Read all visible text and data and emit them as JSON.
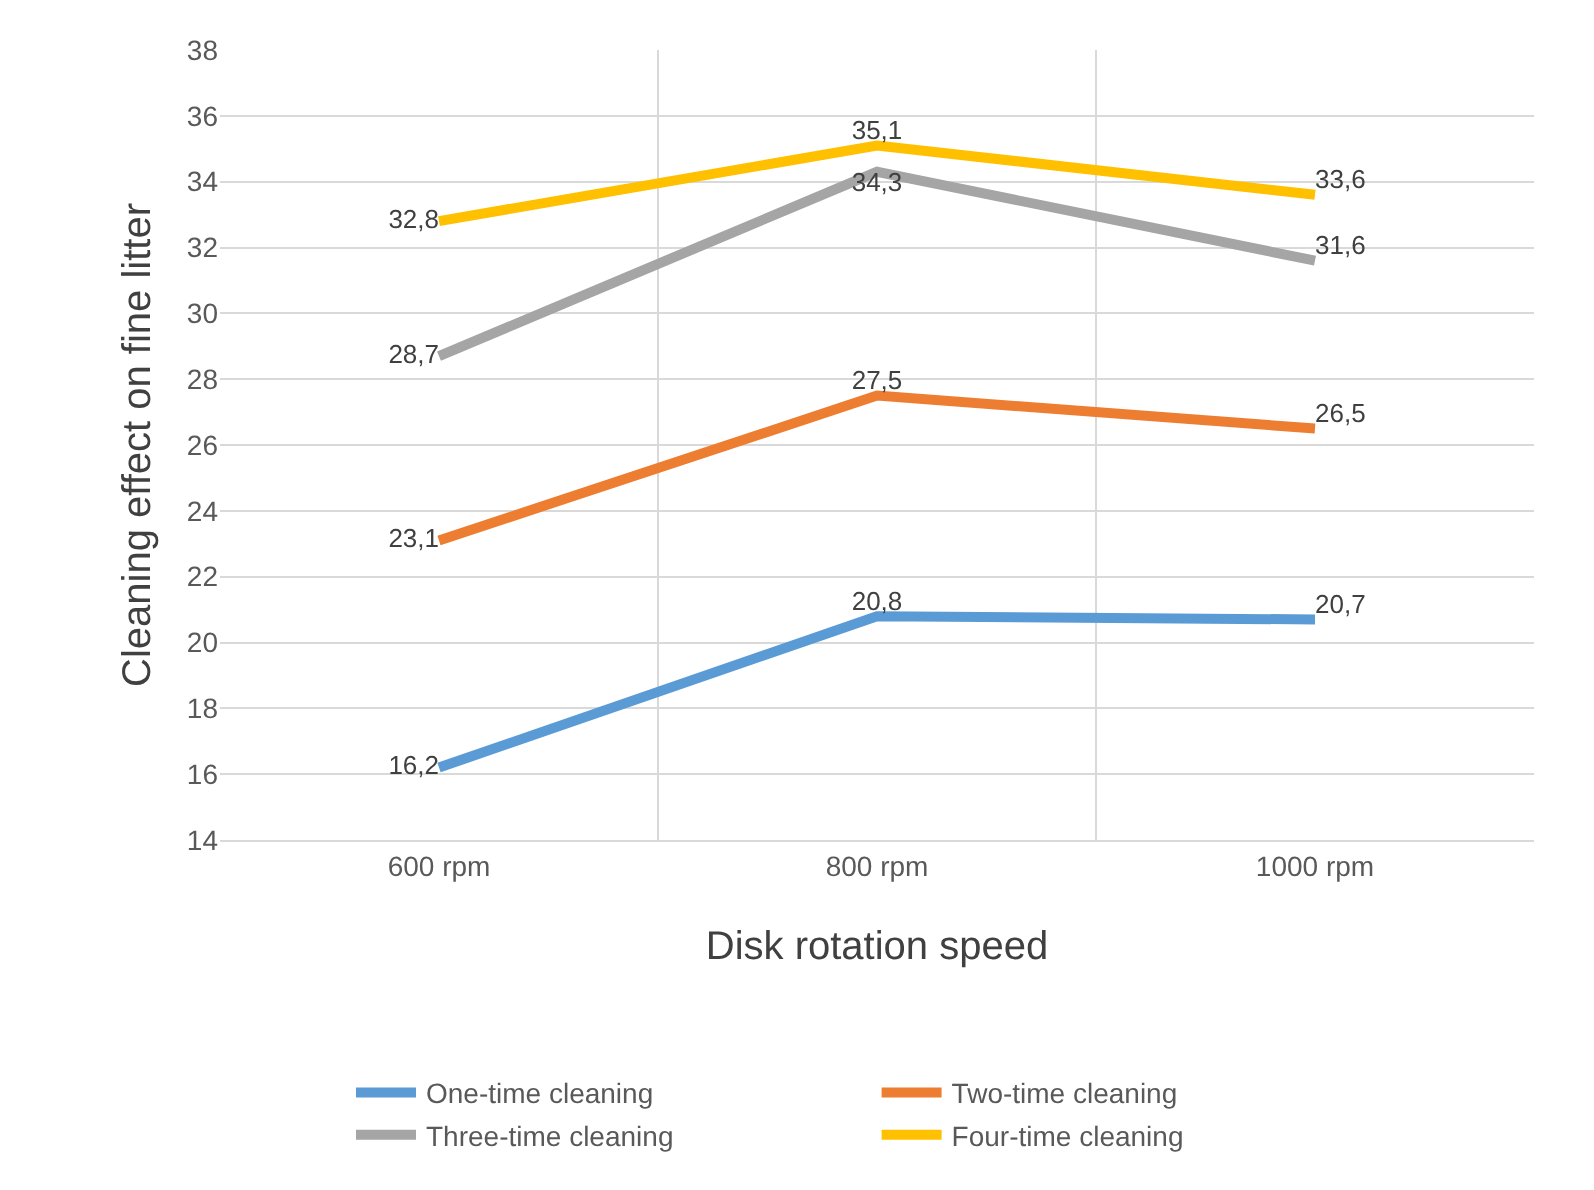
{
  "chart_data": {
    "type": "line",
    "xlabel": "Disk rotation speed",
    "ylabel": "Cleaning effect on fine litter",
    "categories": [
      "600 rpm",
      "800 rpm",
      "1000 rpm"
    ],
    "series": [
      {
        "name": "One-time cleaning",
        "color": "#5b9bd5",
        "values": [
          16.2,
          20.8,
          20.7
        ],
        "value_labels": [
          "16,2",
          "20,8",
          "20,7"
        ]
      },
      {
        "name": "Two-time cleaning",
        "color": "#ed7d31",
        "values": [
          23.1,
          27.5,
          26.5
        ],
        "value_labels": [
          "23,1",
          "27,5",
          "26,5"
        ]
      },
      {
        "name": "Three-time cleaning",
        "color": "#a5a5a5",
        "values": [
          28.7,
          34.3,
          31.6
        ],
        "value_labels": [
          "28,7",
          "34,3",
          "31,6"
        ]
      },
      {
        "name": "Four-time cleaning",
        "color": "#ffc000",
        "values": [
          32.8,
          35.1,
          33.6
        ],
        "value_labels": [
          "32,8",
          "35,1",
          "33,6"
        ]
      }
    ],
    "ylim": [
      14,
      38
    ],
    "yticks": [
      14,
      16,
      18,
      20,
      22,
      24,
      26,
      28,
      30,
      32,
      34,
      36,
      38
    ],
    "grid": true,
    "legend": "bottom",
    "marker": "none",
    "line_style": "solid"
  }
}
